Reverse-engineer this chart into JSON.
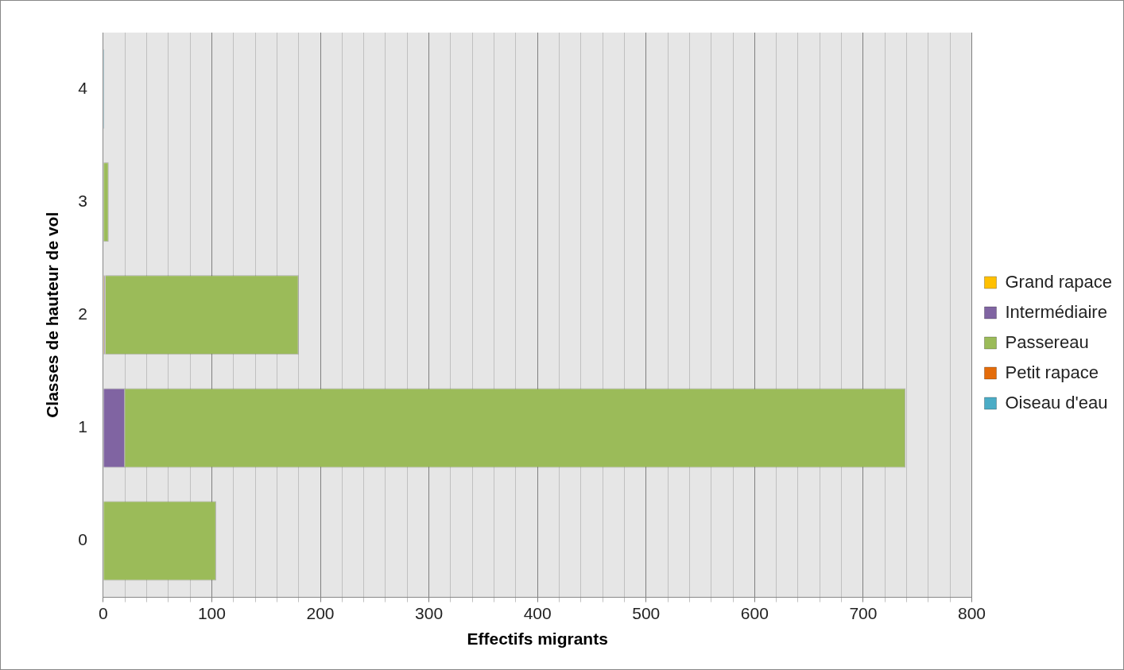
{
  "chart_data": {
    "type": "bar",
    "orientation": "horizontal",
    "stacked": true,
    "xlabel": "Effectifs migrants",
    "ylabel": "Classes de hauteur de vol",
    "categories": [
      "4",
      "3",
      "2",
      "1",
      "0"
    ],
    "series": [
      {
        "name": "Grand rapace",
        "color": "#ffc000",
        "values": [
          0,
          0,
          1,
          0,
          0
        ]
      },
      {
        "name": "Intermédiaire",
        "color": "#8064a2",
        "values": [
          0,
          0,
          1,
          20,
          0
        ]
      },
      {
        "name": "Passereau",
        "color": "#9bbb59",
        "values": [
          0,
          5,
          178,
          719,
          104
        ]
      },
      {
        "name": "Petit rapace",
        "color": "#e46c0a",
        "values": [
          0,
          0,
          null,
          0,
          0
        ]
      },
      {
        "name": "Oiseau d'eau",
        "color": "#4bacc6",
        "values": [
          1,
          0,
          0,
          0,
          0
        ]
      }
    ],
    "xlim": [
      0,
      800
    ],
    "xticks": [
      0,
      {
        "value": 20,
        "label": null
      },
      {
        "value": 40,
        "label": null
      },
      {
        "value": 60,
        "label": null
      },
      {
        "value": 80,
        "label": null
      },
      100,
      {
        "value": 120,
        "label": null
      },
      {
        "value": 140,
        "label": null
      },
      {
        "value": 160,
        "label": null
      },
      {
        "value": 180,
        "label": null
      },
      200,
      {
        "value": 220,
        "label": null
      },
      {
        "value": 240,
        "label": null
      },
      {
        "value": 260,
        "label": null
      },
      {
        "value": 280,
        "label": null
      },
      300,
      {
        "value": 320,
        "label": null
      },
      {
        "value": 340,
        "label": null
      },
      {
        "value": 360,
        "label": null
      },
      {
        "value": 380,
        "label": null
      },
      400,
      {
        "value": 420,
        "label": null
      },
      {
        "value": 440,
        "label": null
      },
      {
        "value": 460,
        "label": null
      },
      {
        "value": 480,
        "label": null
      },
      500,
      {
        "value": 520,
        "label": null
      },
      {
        "value": 540,
        "label": null
      },
      {
        "value": 560,
        "label": null
      },
      {
        "value": 580,
        "label": null
      },
      600,
      {
        "value": 620,
        "label": null
      },
      {
        "value": 640,
        "label": null
      },
      {
        "value": 660,
        "label": null
      },
      {
        "value": 680,
        "label": null
      },
      700,
      {
        "value": 720,
        "label": null
      },
      {
        "value": 740,
        "label": null
      },
      {
        "value": 760,
        "label": null
      },
      {
        "value": 780,
        "label": null
      },
      800
    ],
    "grid": "x",
    "legend": "right"
  }
}
